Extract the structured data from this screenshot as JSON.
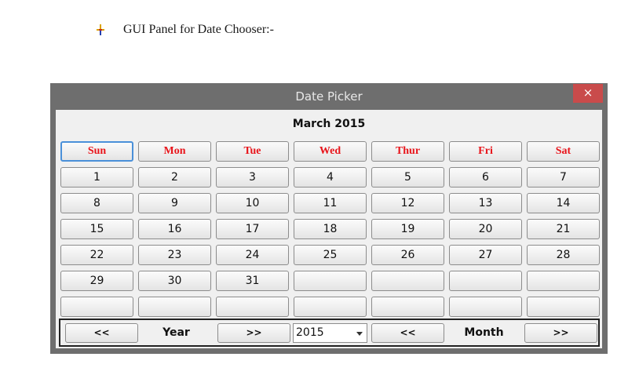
{
  "doc": {
    "bullet_icon": "pushpin-icon",
    "text": "GUI Panel for Date Chooser:-"
  },
  "window": {
    "title": "Date Picker",
    "close_glyph": "×",
    "colors": {
      "frame": "#6e6e6e",
      "close": "#c94b4b",
      "header_text": "#e8141a"
    }
  },
  "calendar": {
    "month_label": "March 2015",
    "weekdays": [
      "Sun",
      "Mon",
      "Tue",
      "Wed",
      "Thur",
      "Fri",
      "Sat"
    ],
    "focused_weekday": "Sun",
    "weeks": [
      [
        "1",
        "2",
        "3",
        "4",
        "5",
        "6",
        "7"
      ],
      [
        "8",
        "9",
        "10",
        "11",
        "12",
        "13",
        "14"
      ],
      [
        "15",
        "16",
        "17",
        "18",
        "19",
        "20",
        "21"
      ],
      [
        "22",
        "23",
        "24",
        "25",
        "26",
        "27",
        "28"
      ],
      [
        "29",
        "30",
        "31",
        "",
        "",
        "",
        ""
      ],
      [
        "",
        "",
        "",
        "",
        "",
        "",
        ""
      ]
    ]
  },
  "nav": {
    "prev_year": "<<",
    "year_label": "Year",
    "next_year": ">>",
    "year_value": "2015",
    "prev_month": "<<",
    "month_label": "Month",
    "next_month": ">>"
  }
}
